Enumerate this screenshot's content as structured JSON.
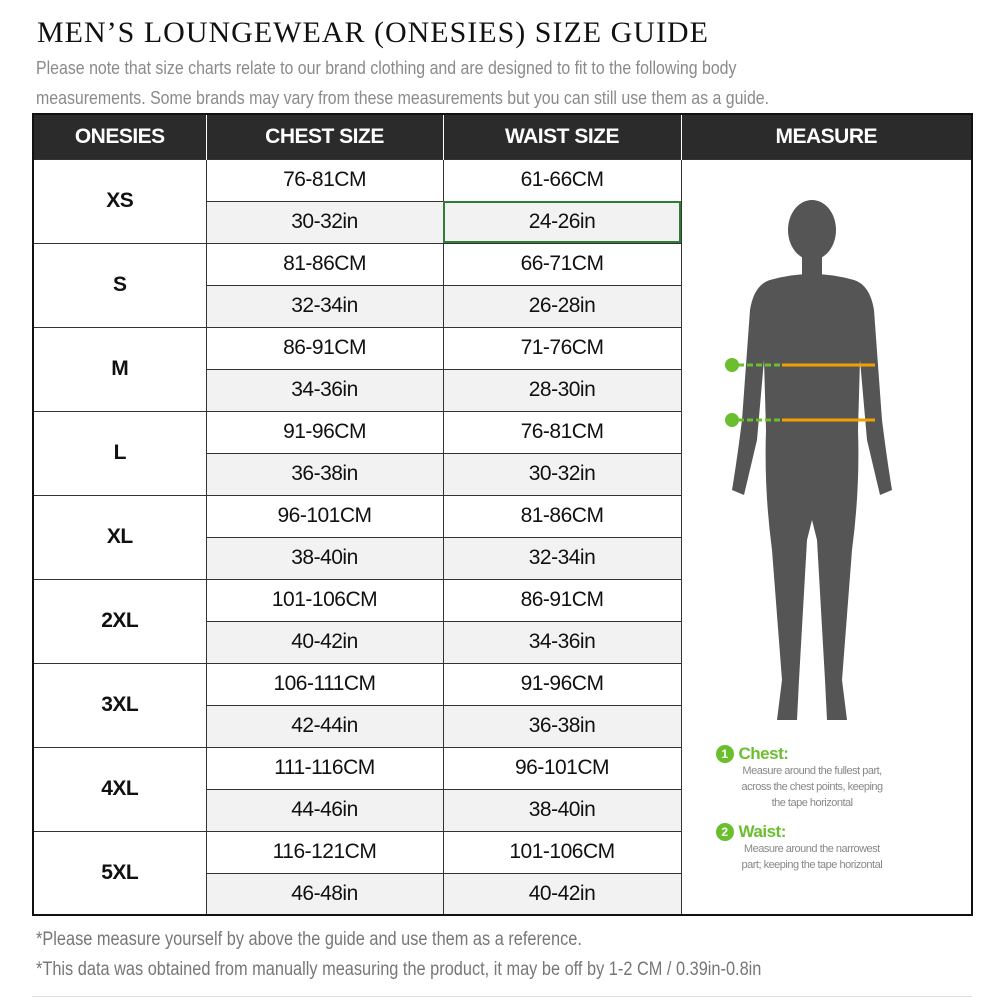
{
  "title": "MEN’S LOUNGEWEAR (ONESIES) SIZE GUIDE",
  "intro": [
    "Please note that size charts relate to our brand clothing and are designed to fit to the following body",
    "measurements. Some brands may vary from these measurements but you can still use them as a guide."
  ],
  "headers": [
    "ONESIES",
    "CHEST SIZE",
    "WAIST SIZE",
    "MEASURE"
  ],
  "rows": [
    {
      "size": "XS",
      "chest_cm": "76-81CM",
      "chest_in": "30-32in",
      "waist_cm": "61-66CM",
      "waist_in": "24-26in"
    },
    {
      "size": "S",
      "chest_cm": "81-86CM",
      "chest_in": "32-34in",
      "waist_cm": "66-71CM",
      "waist_in": "26-28in"
    },
    {
      "size": "M",
      "chest_cm": "86-91CM",
      "chest_in": "34-36in",
      "waist_cm": "71-76CM",
      "waist_in": "28-30in"
    },
    {
      "size": "L",
      "chest_cm": "91-96CM",
      "chest_in": "36-38in",
      "waist_cm": "76-81CM",
      "waist_in": "30-32in"
    },
    {
      "size": "XL",
      "chest_cm": "96-101CM",
      "chest_in": "38-40in",
      "waist_cm": "81-86CM",
      "waist_in": "32-34in"
    },
    {
      "size": "2XL",
      "chest_cm": "101-106CM",
      "chest_in": "40-42in",
      "waist_cm": "86-91CM",
      "waist_in": "34-36in"
    },
    {
      "size": "3XL",
      "chest_cm": "106-111CM",
      "chest_in": "42-44in",
      "waist_cm": "91-96CM",
      "waist_in": "36-38in"
    },
    {
      "size": "4XL",
      "chest_cm": "111-116CM",
      "chest_in": "44-46in",
      "waist_cm": "96-101CM",
      "waist_in": "38-40in"
    },
    {
      "size": "5XL",
      "chest_cm": "116-121CM",
      "chest_in": "46-48in",
      "waist_cm": "101-106CM",
      "waist_in": "40-42in"
    }
  ],
  "measure": {
    "chest": {
      "num": "1",
      "label": "Chest:",
      "desc": [
        "Measure around the fullest part,",
        "across the chest points, keeping",
        "the tape horizontal"
      ]
    },
    "waist": {
      "num": "2",
      "label": "Waist:",
      "desc": [
        "Measure around the narrowest",
        "part; keeping the tape horizontal"
      ]
    },
    "accent": "#6abf2e",
    "tape": "#f5a000",
    "figure": "#555555"
  },
  "footnotes": [
    "*Please measure yourself by above the guide and use them as a reference.",
    "*This data was obtained from manually measuring the product, it may be off by 1-2 CM / 0.39in-0.8in"
  ]
}
